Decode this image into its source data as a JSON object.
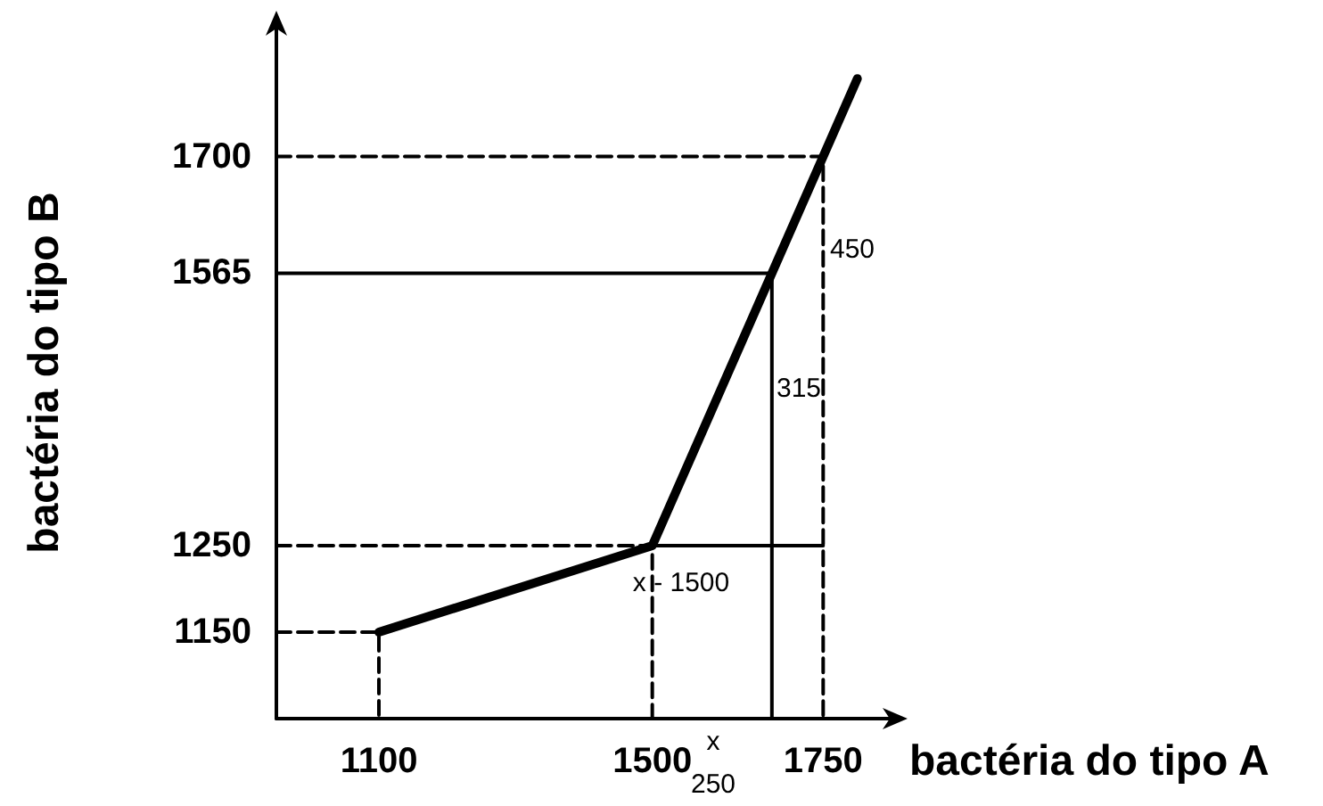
{
  "chart_data": {
    "type": "line",
    "xlabel": "bactéria do tipo A",
    "ylabel": "bactéria do tipo B",
    "xlim": [
      950,
      1850
    ],
    "ylim": [
      1050,
      1850
    ],
    "xticks": [
      1100,
      1500,
      1750
    ],
    "yticks": [
      1150,
      1250,
      1565,
      1700
    ],
    "grid": false,
    "marker": "none",
    "series": [
      {
        "color": "#000000",
        "x": [
          1100,
          1500,
          1800
        ],
        "values": [
          1150,
          1250,
          1790
        ]
      },
      {
        "color": "#000000",
        "line_style": "dashed",
        "x": [
          950,
          1100,
          1100
        ],
        "values": [
          1150,
          1150,
          1050
        ]
      },
      {
        "color": "#000000",
        "line_style": "dashed",
        "x": [
          950,
          1500,
          1500
        ],
        "values": [
          1250,
          1250,
          1050
        ]
      },
      {
        "color": "#000000",
        "line_style": "dashed",
        "x": [
          950,
          1750,
          1750
        ],
        "values": [
          1700,
          1700,
          1050
        ]
      },
      {
        "color": "#000000",
        "line_style": "solid",
        "x": [
          950,
          1675,
          1675
        ],
        "values": [
          1565,
          1565,
          1050
        ]
      },
      {
        "color": "#000000",
        "line_style": "solid",
        "x": [
          1500,
          1750
        ],
        "values": [
          1250,
          1250
        ]
      }
    ],
    "annotations": [
      "315",
      "450",
      "x - 1500",
      "x",
      "250"
    ]
  }
}
